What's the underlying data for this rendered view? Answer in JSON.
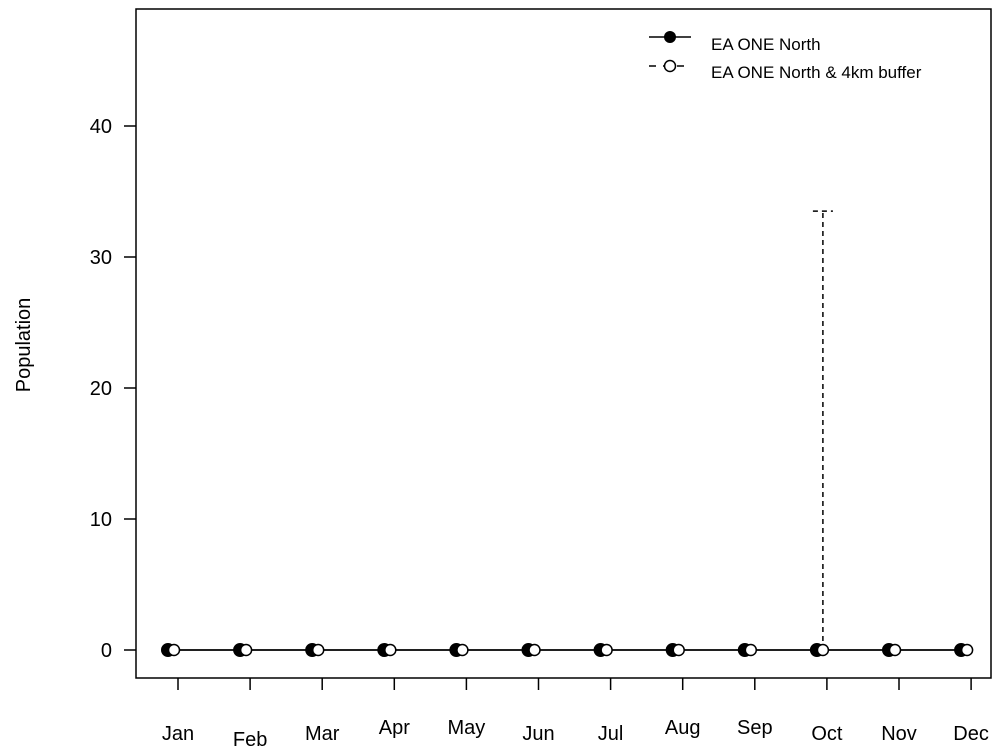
{
  "chart_data": {
    "type": "line",
    "title": "",
    "xlabel": "",
    "ylabel": "Population",
    "categories": [
      "Jan",
      "Feb",
      "Mar",
      "Apr",
      "May",
      "Jun",
      "Jul",
      "Aug",
      "Sep",
      "Oct",
      "Nov",
      "Dec"
    ],
    "yticks": [
      "0",
      "10",
      "20",
      "30",
      "40"
    ],
    "ylim": [
      -3.5,
      48
    ],
    "grid": false,
    "legend_position": "top-right",
    "series": [
      {
        "name": "EA ONE North",
        "marker": "filled-circle",
        "line_style": "solid",
        "values": [
          0,
          0,
          0,
          0,
          0,
          0,
          0,
          0,
          0,
          0,
          0,
          0
        ],
        "upper": [
          0,
          0,
          0,
          0,
          0,
          0,
          0,
          0,
          0,
          0,
          0,
          0
        ]
      },
      {
        "name": "EA ONE North & 4km buffer",
        "marker": "open-circle",
        "line_style": "dashed",
        "values": [
          0,
          0,
          0,
          0,
          0,
          0,
          0,
          0,
          0,
          0,
          0,
          0
        ],
        "upper": [
          0,
          0,
          0,
          0,
          0,
          0,
          0,
          0,
          0,
          33.5,
          0,
          0
        ]
      }
    ]
  }
}
